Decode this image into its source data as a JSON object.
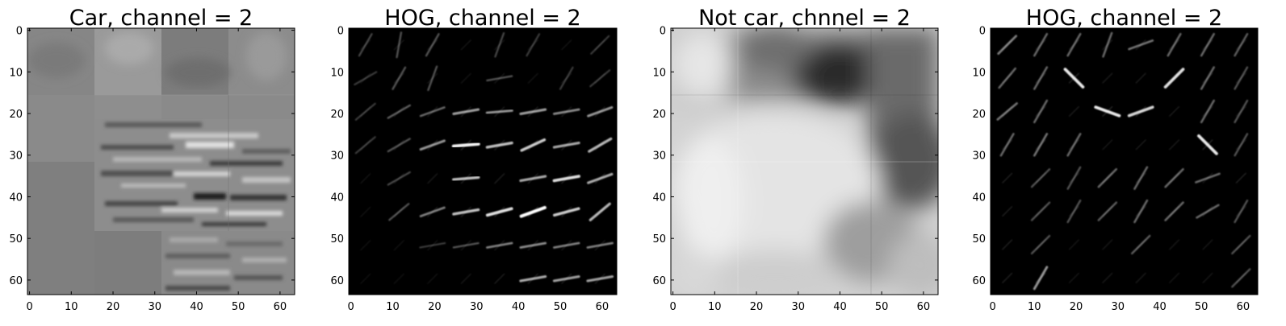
{
  "chart_data": [
    {
      "type": "heatmap",
      "title": "Car, channel = 2",
      "colormap": "gray",
      "xlim": [
        -0.5,
        63.5
      ],
      "ylim": [
        63.5,
        -0.5
      ],
      "xticks": [
        0,
        10,
        20,
        30,
        40,
        50,
        60
      ],
      "yticks": [
        0,
        10,
        20,
        30,
        40,
        50,
        60
      ],
      "xtick_labels": [
        "0",
        "10",
        "20",
        "30",
        "40",
        "50",
        "60"
      ],
      "ytick_labels": [
        "0",
        "10",
        "20",
        "30",
        "40",
        "50",
        "60"
      ],
      "grid": false
    },
    {
      "type": "heatmap",
      "title": "HOG, channel = 2",
      "colormap": "gray",
      "xlim": [
        -0.5,
        63.5
      ],
      "ylim": [
        63.5,
        -0.5
      ],
      "xticks": [
        0,
        10,
        20,
        30,
        40,
        50,
        60
      ],
      "yticks": [
        0,
        10,
        20,
        30,
        40,
        50,
        60
      ],
      "xtick_labels": [
        "0",
        "10",
        "20",
        "30",
        "40",
        "50",
        "60"
      ],
      "ytick_labels": [
        "0",
        "10",
        "20",
        "30",
        "40",
        "50",
        "60"
      ],
      "grid": false
    },
    {
      "type": "heatmap",
      "title": "Not car, chnnel = 2",
      "colormap": "gray",
      "xlim": [
        -0.5,
        63.5
      ],
      "ylim": [
        63.5,
        -0.5
      ],
      "xticks": [
        0,
        10,
        20,
        30,
        40,
        50,
        60
      ],
      "yticks": [
        0,
        10,
        20,
        30,
        40,
        50,
        60
      ],
      "xtick_labels": [
        "0",
        "10",
        "20",
        "30",
        "40",
        "50",
        "60"
      ],
      "ytick_labels": [
        "0",
        "10",
        "20",
        "30",
        "40",
        "50",
        "60"
      ],
      "grid": false
    },
    {
      "type": "heatmap",
      "title": "HOG, channel = 2",
      "colormap": "gray",
      "xlim": [
        -0.5,
        63.5
      ],
      "ylim": [
        63.5,
        -0.5
      ],
      "xticks": [
        0,
        10,
        20,
        30,
        40,
        50,
        60
      ],
      "yticks": [
        0,
        10,
        20,
        30,
        40,
        50,
        60
      ],
      "xtick_labels": [
        "0",
        "10",
        "20",
        "30",
        "40",
        "50",
        "60"
      ],
      "ytick_labels": [
        "0",
        "10",
        "20",
        "30",
        "40",
        "50",
        "60"
      ],
      "grid": false
    }
  ]
}
